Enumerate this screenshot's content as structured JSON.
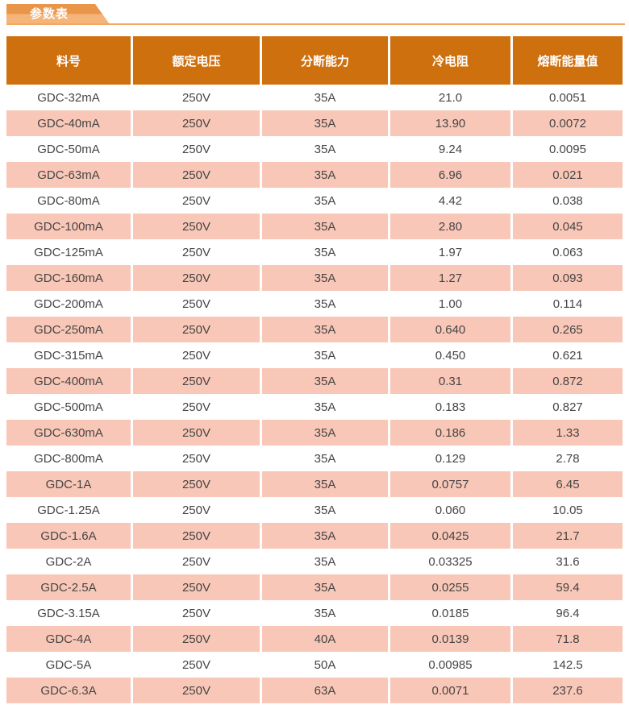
{
  "section": {
    "tab_label": "参数表"
  },
  "colors": {
    "header_bg": "#cf700e",
    "row_alt_bg": "#f9c7b7",
    "tab_top": "#e9964b",
    "tab_bottom": "#f5b57a",
    "rule": "#f2a863",
    "cell_text": "#454545",
    "header_text": "#ffffff"
  },
  "table": {
    "columns": [
      "料号",
      "额定电压",
      "分断能力",
      "冷电阻",
      "熔断能量值"
    ],
    "rows": [
      [
        "GDC-32mA",
        "250V",
        "35A",
        "21.0",
        "0.0051"
      ],
      [
        "GDC-40mA",
        "250V",
        "35A",
        "13.90",
        "0.0072"
      ],
      [
        "GDC-50mA",
        "250V",
        "35A",
        "9.24",
        "0.0095"
      ],
      [
        "GDC-63mA",
        "250V",
        "35A",
        "6.96",
        "0.021"
      ],
      [
        "GDC-80mA",
        "250V",
        "35A",
        "4.42",
        "0.038"
      ],
      [
        "GDC-100mA",
        "250V",
        "35A",
        "2.80",
        "0.045"
      ],
      [
        "GDC-125mA",
        "250V",
        "35A",
        "1.97",
        "0.063"
      ],
      [
        "GDC-160mA",
        "250V",
        "35A",
        "1.27",
        "0.093"
      ],
      [
        "GDC-200mA",
        "250V",
        "35A",
        "1.00",
        "0.114"
      ],
      [
        "GDC-250mA",
        "250V",
        "35A",
        "0.640",
        "0.265"
      ],
      [
        "GDC-315mA",
        "250V",
        "35A",
        "0.450",
        "0.621"
      ],
      [
        "GDC-400mA",
        "250V",
        "35A",
        "0.31",
        "0.872"
      ],
      [
        "GDC-500mA",
        "250V",
        "35A",
        "0.183",
        "0.827"
      ],
      [
        "GDC-630mA",
        "250V",
        "35A",
        "0.186",
        "1.33"
      ],
      [
        "GDC-800mA",
        "250V",
        "35A",
        "0.129",
        "2.78"
      ],
      [
        "GDC-1A",
        "250V",
        "35A",
        "0.0757",
        "6.45"
      ],
      [
        "GDC-1.25A",
        "250V",
        "35A",
        "0.060",
        "10.05"
      ],
      [
        "GDC-1.6A",
        "250V",
        "35A",
        "0.0425",
        "21.7"
      ],
      [
        "GDC-2A",
        "250V",
        "35A",
        "0.03325",
        "31.6"
      ],
      [
        "GDC-2.5A",
        "250V",
        "35A",
        "0.0255",
        "59.4"
      ],
      [
        "GDC-3.15A",
        "250V",
        "35A",
        "0.0185",
        "96.4"
      ],
      [
        "GDC-4A",
        "250V",
        "40A",
        "0.0139",
        "71.8"
      ],
      [
        "GDC-5A",
        "250V",
        "50A",
        "0.00985",
        "142.5"
      ],
      [
        "GDC-6.3A",
        "250V",
        "63A",
        "0.0071",
        "237.6"
      ]
    ]
  }
}
